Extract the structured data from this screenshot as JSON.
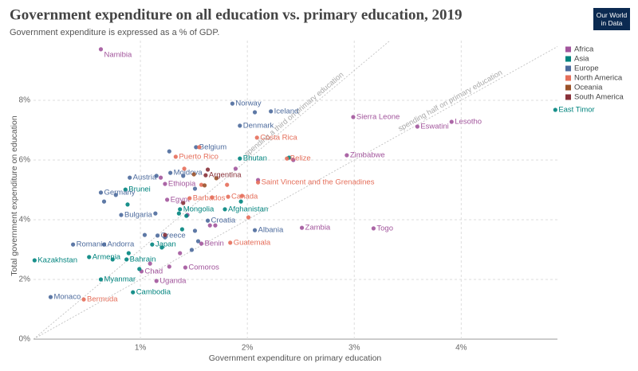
{
  "chart_data": {
    "type": "scatter",
    "title": "Government expenditure on all education vs. primary education, 2019",
    "subtitle": "Government expenditure is expressed as a % of GDP.",
    "logo": "Our World in Data",
    "x_label": "Government expenditure on primary education",
    "y_label": "Total government expenditure on education",
    "xlim": [
      0,
      4.9
    ],
    "ylim": [
      0,
      10
    ],
    "xticks": [
      {
        "value": 1,
        "label": "1%"
      },
      {
        "value": 2,
        "label": "2%"
      },
      {
        "value": 3,
        "label": "3%"
      },
      {
        "value": 4,
        "label": "4%"
      }
    ],
    "yticks": [
      {
        "value": 0,
        "label": "0%"
      },
      {
        "value": 2,
        "label": "2%"
      },
      {
        "value": 4,
        "label": "4%"
      },
      {
        "value": 6,
        "label": "6%"
      },
      {
        "value": 8,
        "label": "8%"
      }
    ],
    "grid": true,
    "legend": "top-right",
    "reference_lines": [
      {
        "label": "spending a third on primary education",
        "slope": 3
      },
      {
        "label": "spending half on primary education",
        "slope": 2
      }
    ],
    "series": [
      {
        "name": "Africa",
        "color": "#a2559c",
        "x": [
          0.63,
          2.99,
          3.59,
          3.91,
          2.93,
          1.23,
          1.25,
          1.57,
          1.42,
          1.01,
          1.15,
          2.51,
          3.18,
          1.89,
          1.65,
          1.7,
          1.37,
          1.09,
          1.44,
          1.27,
          2.43,
          2.1,
          1.19
        ],
        "values": [
          9.71,
          7.44,
          7.12,
          7.28,
          6.16,
          5.2,
          4.67,
          3.2,
          2.4,
          2.27,
          1.95,
          3.73,
          3.71,
          5.71,
          3.81,
          3.81,
          2.88,
          2.53,
          4.16,
          2.43,
          6.0,
          5.33,
          5.41
        ],
        "labels": [
          "Namibia",
          "Sierra Leone",
          "Eswatini",
          "Lesotho",
          "Zimbabwe",
          "Ethiopia",
          "Egypt",
          "Benin",
          "Comoros",
          "Chad",
          "Uganda",
          "Zambia",
          "Togo",
          null,
          null,
          null,
          null,
          null,
          null,
          null,
          null,
          null,
          null
        ]
      },
      {
        "name": "Asia",
        "color": "#00847e",
        "x": [
          4.88,
          1.93,
          0.86,
          1.37,
          1.79,
          1.11,
          0.87,
          0.52,
          0.01,
          0.63,
          0.93,
          0.88,
          1.36,
          1.43,
          1.94,
          0.74,
          1.39,
          1.2,
          2.39,
          0.99,
          0.89
        ],
        "values": [
          7.68,
          6.05,
          5.01,
          4.35,
          4.35,
          3.17,
          2.67,
          2.75,
          2.64,
          2.0,
          1.57,
          4.51,
          4.21,
          4.13,
          4.61,
          2.67,
          3.68,
          3.07,
          6.08,
          2.35,
          2.88
        ],
        "labels": [
          "East Timor",
          "Bhutan",
          "Brunei",
          "Mongolia",
          "Afghanistan",
          "Japan",
          "Bahrain",
          "Armenia",
          "Kazakhstan",
          "Myanmar",
          "Cambodia",
          null,
          null,
          null,
          null,
          null,
          null,
          null,
          null,
          null,
          null
        ]
      },
      {
        "name": "Europe",
        "color": "#4c6a9c",
        "x": [
          1.86,
          2.22,
          1.93,
          1.52,
          0.9,
          1.28,
          0.63,
          0.82,
          1.63,
          2.07,
          1.16,
          0.37,
          0.66,
          0.16,
          1.27,
          1.15,
          1.4,
          0.66,
          0.77,
          1.51,
          1.14,
          1.04,
          1.23,
          1.51,
          1.48,
          1.54,
          2.07
        ],
        "values": [
          7.89,
          7.63,
          7.15,
          6.43,
          5.41,
          5.57,
          4.91,
          4.16,
          3.97,
          3.65,
          3.47,
          3.17,
          3.17,
          1.41,
          6.29,
          5.47,
          5.47,
          4.61,
          4.83,
          5.04,
          4.21,
          3.49,
          3.41,
          3.63,
          2.99,
          3.28,
          7.6
        ],
        "labels": [
          "Norway",
          "Iceland",
          "Denmark",
          "Belgium",
          "Austria",
          "Moldova",
          "Germany",
          "Bulgaria",
          "Croatia",
          "Albania",
          "Greece",
          "Romania",
          "Andorra",
          "Monaco",
          null,
          null,
          null,
          null,
          null,
          null,
          null,
          null,
          null,
          null,
          null,
          null,
          null
        ]
      },
      {
        "name": "North America",
        "color": "#e56e5a",
        "x": [
          2.09,
          1.33,
          2.37,
          2.1,
          1.46,
          1.82,
          1.84,
          0.47,
          1.41,
          1.57,
          1.81,
          1.95,
          2.01,
          1.67,
          1.55
        ],
        "values": [
          6.75,
          6.11,
          6.05,
          5.25,
          4.72,
          4.77,
          3.23,
          1.33,
          5.71,
          5.17,
          5.17,
          4.8,
          4.08,
          4.75,
          6.43
        ],
        "labels": [
          "Costa Rica",
          "Puerto Rico",
          "Belize",
          "Saint Vincent and the Grenadines",
          "Barbados",
          "Canada",
          "Guatemala",
          "Bermuda",
          null,
          null,
          null,
          null,
          null,
          null,
          null
        ]
      },
      {
        "name": "Oceania",
        "color": "#9a5129",
        "x": [
          1.6,
          1.71,
          1.5
        ],
        "values": [
          5.15,
          5.39,
          5.52
        ],
        "labels": [
          null,
          null,
          null
        ]
      },
      {
        "name": "South America",
        "color": "#883039",
        "x": [
          1.61,
          1.4,
          1.63,
          1.23
        ],
        "values": [
          5.49,
          4.56,
          5.68,
          3.49
        ],
        "labels": [
          "Argentina",
          null,
          null,
          null
        ]
      }
    ]
  }
}
